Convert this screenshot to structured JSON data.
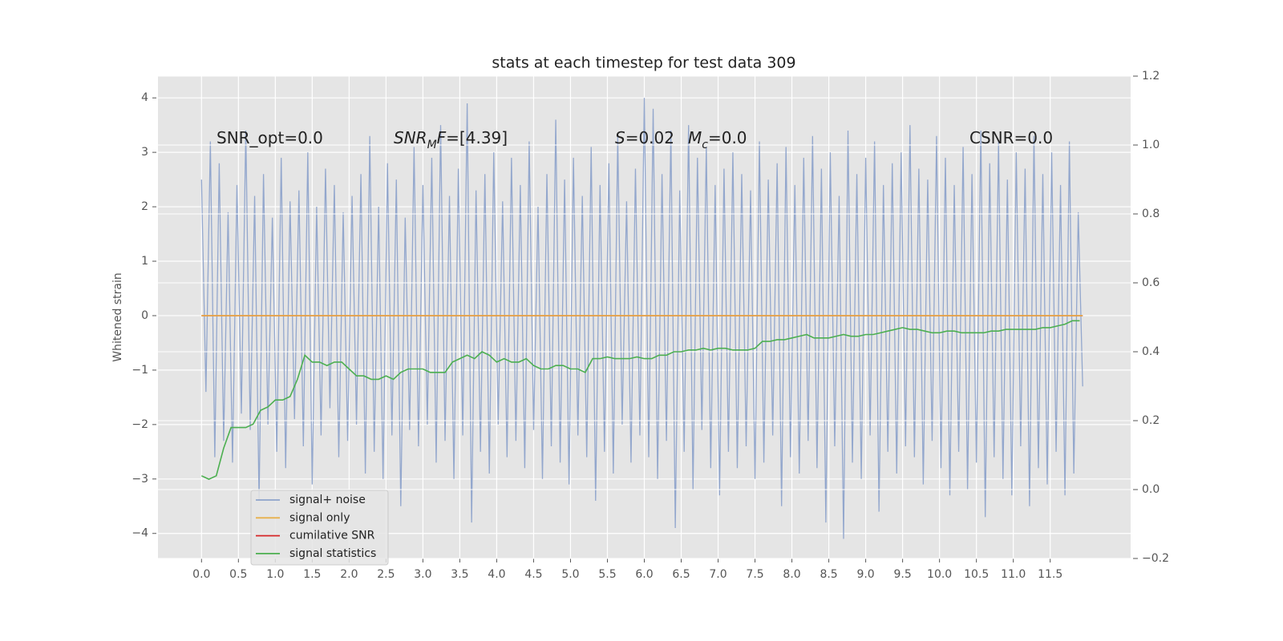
{
  "chart_data": {
    "type": "line",
    "title": "stats at each timestep for test data 309",
    "ylabel": "Whitened strain",
    "background": "#e5e5e5",
    "grid": true,
    "legend": "lower left",
    "xlim": [
      -0.59,
      12.59
    ],
    "ylim": [
      -4.46,
      4.4
    ],
    "y2lim": [
      -0.2,
      1.2
    ],
    "xticks": [
      {
        "value": 0,
        "label": "0.0"
      },
      0.5,
      {
        "value": 1,
        "label": "1.0"
      },
      1.5,
      {
        "value": 2,
        "label": "2.0"
      },
      2.5,
      {
        "value": 3,
        "label": "3.0"
      },
      3.5,
      {
        "value": 4,
        "label": "4.0"
      },
      4.5,
      {
        "value": 5,
        "label": "5.0"
      },
      5.5,
      {
        "value": 6,
        "label": "6.0"
      },
      6.5,
      {
        "value": 7,
        "label": "7.0"
      },
      7.5,
      {
        "value": 8,
        "label": "8.0"
      },
      8.5,
      {
        "value": 9,
        "label": "9.0"
      },
      9.5,
      {
        "value": 10,
        "label": "10.0"
      },
      10.5,
      {
        "value": 11,
        "label": "11.0"
      },
      11.5
    ],
    "yticks": [
      {
        "value": -4,
        "label": "−4"
      },
      {
        "value": -3,
        "label": "−3"
      },
      {
        "value": -2,
        "label": "−2"
      },
      {
        "value": -1,
        "label": "−1"
      },
      0,
      1,
      2,
      3,
      4
    ],
    "y2ticks": [
      {
        "value": -0.2,
        "label": "−0.2"
      },
      {
        "value": 0,
        "label": "0.0"
      },
      0.2,
      0.4,
      0.6,
      0.8,
      {
        "value": 1,
        "label": "1.0"
      },
      1.2
    ],
    "annotations": [
      {
        "parts": [
          "SNR_opt=0.0"
        ],
        "styles": [
          "normal"
        ]
      },
      {
        "parts": [
          "SNR",
          "M",
          "F",
          "=[4.39]"
        ],
        "styles": [
          "italic",
          "sub",
          "italic",
          "normal"
        ]
      },
      {
        "parts": [
          "S",
          "=0.02"
        ],
        "styles": [
          "italic",
          "normal"
        ]
      },
      {
        "parts": [
          "M",
          "c",
          "=0.0"
        ],
        "styles": [
          "italic",
          "sub",
          "normal"
        ]
      },
      {
        "parts": [
          "CSNR=0.0"
        ],
        "styles": [
          "normal"
        ]
      }
    ],
    "series": [
      {
        "name": "signal+ noise",
        "color": "#8ea3cb",
        "axis": "y",
        "x": [
          0,
          0.06,
          0.12,
          0.18,
          0.24,
          0.3,
          0.36,
          0.42,
          0.48,
          0.54,
          0.6,
          0.66,
          0.72,
          0.78,
          0.84,
          0.9,
          0.96,
          1.02,
          1.08,
          1.14,
          1.2,
          1.26,
          1.32,
          1.38,
          1.44,
          1.5,
          1.56,
          1.62,
          1.68,
          1.74,
          1.8,
          1.86,
          1.92,
          1.98,
          2.04,
          2.1,
          2.16,
          2.22,
          2.28,
          2.34,
          2.4,
          2.46,
          2.52,
          2.58,
          2.64,
          2.7,
          2.76,
          2.82,
          2.88,
          2.94,
          3.0,
          3.06,
          3.12,
          3.18,
          3.24,
          3.3,
          3.36,
          3.42,
          3.48,
          3.54,
          3.6,
          3.66,
          3.72,
          3.78,
          3.84,
          3.9,
          3.96,
          4.02,
          4.08,
          4.14,
          4.2,
          4.26,
          4.32,
          4.38,
          4.44,
          4.5,
          4.56,
          4.62,
          4.68,
          4.74,
          4.8,
          4.86,
          4.92,
          4.98,
          5.04,
          5.1,
          5.16,
          5.22,
          5.28,
          5.34,
          5.4,
          5.46,
          5.52,
          5.58,
          5.64,
          5.7,
          5.76,
          5.82,
          5.88,
          5.94,
          6.0,
          6.06,
          6.12,
          6.18,
          6.24,
          6.3,
          6.36,
          6.42,
          6.48,
          6.54,
          6.6,
          6.66,
          6.72,
          6.78,
          6.84,
          6.9,
          6.96,
          7.02,
          7.08,
          7.14,
          7.2,
          7.26,
          7.32,
          7.38,
          7.44,
          7.5,
          7.56,
          7.62,
          7.68,
          7.74,
          7.8,
          7.86,
          7.92,
          7.98,
          8.04,
          8.1,
          8.16,
          8.22,
          8.28,
          8.34,
          8.4,
          8.46,
          8.52,
          8.58,
          8.64,
          8.7,
          8.76,
          8.82,
          8.88,
          8.94,
          9.0,
          9.06,
          9.12,
          9.18,
          9.24,
          9.3,
          9.36,
          9.42,
          9.48,
          9.54,
          9.6,
          9.66,
          9.72,
          9.78,
          9.84,
          9.9,
          9.96,
          10.02,
          10.08,
          10.14,
          10.2,
          10.26,
          10.32,
          10.38,
          10.44,
          10.5,
          10.56,
          10.62,
          10.68,
          10.74,
          10.8,
          10.86,
          10.92,
          10.98,
          11.04,
          11.1,
          11.16,
          11.22,
          11.28,
          11.34,
          11.4,
          11.46,
          11.52,
          11.58,
          11.64,
          11.7,
          11.76,
          11.82,
          11.88,
          11.94
        ],
        "values": [
          2.5,
          -1.4,
          3.2,
          -2.6,
          2.8,
          -2.3,
          1.9,
          -2.7,
          2.4,
          -1.8,
          3.4,
          -2.1,
          2.2,
          -3.4,
          2.6,
          -2.0,
          1.8,
          -2.5,
          2.9,
          -2.8,
          2.1,
          -1.9,
          2.3,
          -2.4,
          3.0,
          -3.1,
          2.0,
          -2.2,
          2.7,
          -1.7,
          2.4,
          -2.6,
          1.9,
          -2.3,
          2.2,
          -2.0,
          2.6,
          -2.9,
          3.3,
          -2.5,
          2.0,
          -3.0,
          2.8,
          -2.2,
          2.5,
          -3.5,
          1.8,
          -2.1,
          3.1,
          -2.4,
          2.4,
          -2.0,
          2.9,
          -2.7,
          3.5,
          -2.3,
          2.2,
          -3.0,
          2.7,
          -2.2,
          3.9,
          -3.8,
          2.3,
          -2.5,
          2.6,
          -2.9,
          3.0,
          -2.0,
          2.1,
          -2.6,
          2.9,
          -2.3,
          2.4,
          -2.8,
          3.2,
          -2.1,
          2.0,
          -3.0,
          2.6,
          -2.4,
          3.6,
          -2.7,
          2.5,
          -3.1,
          2.9,
          -2.2,
          2.2,
          -2.6,
          3.1,
          -3.4,
          2.4,
          -2.5,
          2.8,
          -2.9,
          3.3,
          -2.0,
          2.1,
          -2.7,
          2.7,
          -2.2,
          4.0,
          -2.6,
          3.8,
          -3.0,
          2.6,
          -2.3,
          3.4,
          -3.9,
          2.3,
          -2.5,
          3.5,
          -3.2,
          2.9,
          -2.1,
          3.1,
          -2.8,
          2.4,
          -3.3,
          2.7,
          -2.5,
          3.0,
          -2.8,
          2.6,
          -2.4,
          2.3,
          -3.0,
          3.2,
          -2.7,
          2.5,
          -2.2,
          2.8,
          -3.5,
          3.1,
          -2.6,
          2.4,
          -2.9,
          2.9,
          -2.3,
          3.3,
          -2.8,
          2.7,
          -3.8,
          3.0,
          -2.4,
          2.2,
          -4.1,
          3.4,
          -2.7,
          2.6,
          -3.0,
          2.9,
          -2.2,
          3.2,
          -3.6,
          2.4,
          -2.5,
          2.8,
          -2.9,
          3.0,
          -2.4,
          3.5,
          -2.6,
          2.7,
          -3.1,
          2.5,
          -2.3,
          3.3,
          -2.8,
          2.9,
          -3.3,
          2.4,
          -2.5,
          3.1,
          -3.2,
          2.6,
          -2.7,
          3.4,
          -3.7,
          2.8,
          -2.6,
          3.2,
          -3.0,
          2.5,
          -3.3,
          3.0,
          -2.4,
          2.7,
          -3.5,
          3.3,
          -2.8,
          2.6,
          -3.1,
          3.0,
          -2.5,
          2.4,
          -3.3,
          3.2,
          -2.9,
          1.9,
          -1.3
        ]
      },
      {
        "name": "signal only",
        "color": "#e8b04a",
        "axis": "y",
        "x": [
          0,
          11.94
        ],
        "values": [
          0,
          0
        ]
      },
      {
        "name": "cumilative SNR",
        "color": "#d62728",
        "axis": "y",
        "x": [
          0,
          11.94
        ],
        "values": [
          0,
          0
        ]
      },
      {
        "name": "signal statistics",
        "color": "#4caf50",
        "axis": "y2",
        "x": [
          0,
          0.1,
          0.2,
          0.3,
          0.4,
          0.5,
          0.6,
          0.7,
          0.8,
          0.9,
          1.0,
          1.1,
          1.2,
          1.3,
          1.4,
          1.5,
          1.6,
          1.7,
          1.8,
          1.9,
          2.0,
          2.1,
          2.2,
          2.3,
          2.4,
          2.5,
          2.6,
          2.7,
          2.8,
          2.9,
          3.0,
          3.1,
          3.2,
          3.3,
          3.4,
          3.5,
          3.6,
          3.7,
          3.8,
          3.9,
          4.0,
          4.1,
          4.2,
          4.3,
          4.4,
          4.5,
          4.6,
          4.7,
          4.8,
          4.9,
          5.0,
          5.1,
          5.2,
          5.3,
          5.4,
          5.5,
          5.6,
          5.7,
          5.8,
          5.9,
          6.0,
          6.1,
          6.2,
          6.3,
          6.4,
          6.5,
          6.6,
          6.7,
          6.8,
          6.9,
          7.0,
          7.1,
          7.2,
          7.3,
          7.4,
          7.5,
          7.6,
          7.7,
          7.8,
          7.9,
          8.0,
          8.1,
          8.2,
          8.3,
          8.4,
          8.5,
          8.6,
          8.7,
          8.8,
          8.9,
          9.0,
          9.1,
          9.2,
          9.3,
          9.4,
          9.5,
          9.6,
          9.7,
          9.8,
          9.9,
          10.0,
          10.1,
          10.2,
          10.3,
          10.4,
          10.5,
          10.6,
          10.7,
          10.8,
          10.9,
          11.0,
          11.1,
          11.2,
          11.3,
          11.4,
          11.5,
          11.6,
          11.7,
          11.8,
          11.9
        ],
        "values": [
          0.04,
          0.03,
          0.04,
          0.12,
          0.18,
          0.18,
          0.18,
          0.19,
          0.23,
          0.24,
          0.26,
          0.26,
          0.27,
          0.32,
          0.39,
          0.37,
          0.37,
          0.36,
          0.37,
          0.37,
          0.35,
          0.33,
          0.33,
          0.32,
          0.32,
          0.33,
          0.32,
          0.34,
          0.35,
          0.35,
          0.35,
          0.34,
          0.34,
          0.34,
          0.37,
          0.38,
          0.39,
          0.38,
          0.4,
          0.39,
          0.37,
          0.38,
          0.37,
          0.37,
          0.38,
          0.36,
          0.35,
          0.35,
          0.36,
          0.36,
          0.35,
          0.35,
          0.34,
          0.38,
          0.38,
          0.385,
          0.38,
          0.38,
          0.38,
          0.385,
          0.38,
          0.38,
          0.39,
          0.39,
          0.4,
          0.4,
          0.405,
          0.405,
          0.41,
          0.405,
          0.41,
          0.41,
          0.405,
          0.405,
          0.405,
          0.41,
          0.43,
          0.43,
          0.435,
          0.435,
          0.44,
          0.445,
          0.45,
          0.44,
          0.44,
          0.44,
          0.445,
          0.45,
          0.445,
          0.445,
          0.45,
          0.45,
          0.455,
          0.46,
          0.465,
          0.47,
          0.465,
          0.465,
          0.46,
          0.455,
          0.455,
          0.46,
          0.46,
          0.455,
          0.455,
          0.455,
          0.455,
          0.46,
          0.46,
          0.465,
          0.465,
          0.465,
          0.465,
          0.465,
          0.47,
          0.47,
          0.475,
          0.48,
          0.49,
          0.49
        ]
      }
    ]
  }
}
